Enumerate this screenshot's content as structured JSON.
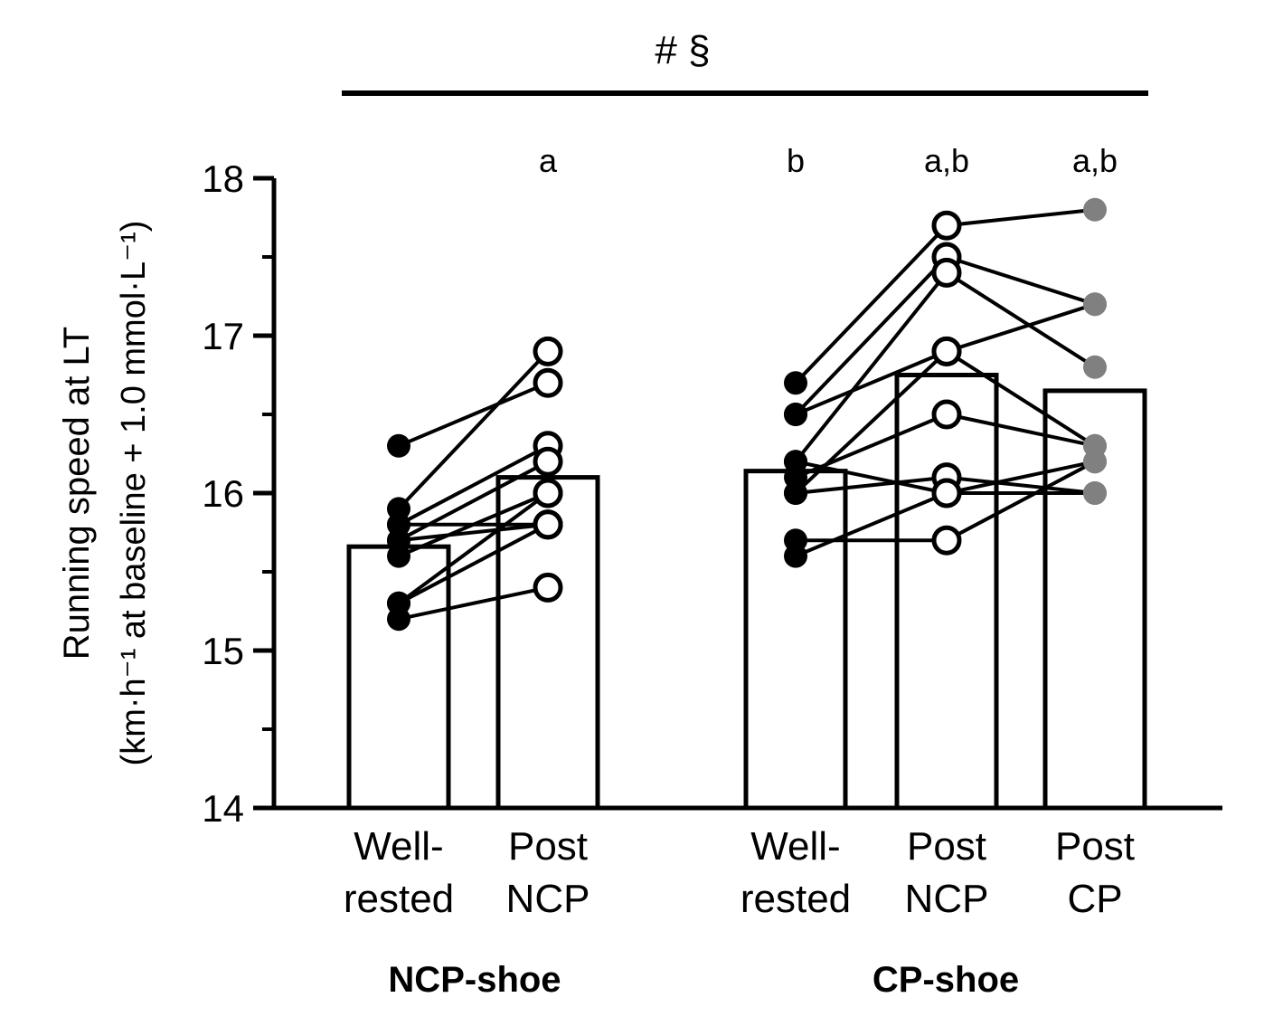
{
  "chart_data": {
    "type": "bar",
    "title": "",
    "ylabel_line1": "Running speed at LT",
    "ylabel_line2": "(km·h⁻¹ at baseline + 1.0 mmol·L⁻¹)",
    "ylim": [
      14,
      18
    ],
    "yticks": [
      "14",
      "15",
      "16",
      "17",
      "18"
    ],
    "significance_top": "# §",
    "categories": [
      {
        "line1": "Well-",
        "line2": "rested",
        "group": 0,
        "annotation": "",
        "bar": 15.66,
        "marker": "filled-black"
      },
      {
        "line1": "Post",
        "line2": "NCP",
        "group": 0,
        "annotation": "a",
        "bar": 16.1,
        "marker": "open"
      },
      {
        "line1": "Well-",
        "line2": "rested",
        "group": 1,
        "annotation": "b",
        "bar": 16.14,
        "marker": "filled-black"
      },
      {
        "line1": "Post",
        "line2": "NCP",
        "group": 1,
        "annotation": "a,b",
        "bar": 16.75,
        "marker": "open"
      },
      {
        "line1": "Post",
        "line2": "CP",
        "group": 1,
        "annotation": "a,b",
        "bar": 16.65,
        "marker": "filled-grey"
      }
    ],
    "groups": [
      "NCP-shoe",
      "CP-shoe"
    ],
    "individuals_ncp_shoe": [
      [
        16.3,
        16.7
      ],
      [
        15.9,
        16.9
      ],
      [
        15.8,
        16.3
      ],
      [
        15.7,
        16.2
      ],
      [
        15.7,
        15.8
      ],
      [
        15.6,
        16.0
      ],
      [
        15.8,
        15.8
      ],
      [
        15.3,
        16.0
      ],
      [
        15.3,
        15.8
      ],
      [
        15.2,
        15.4
      ]
    ],
    "individuals_cp_shoe": [
      [
        16.7,
        17.7,
        17.8
      ],
      [
        16.5,
        17.5,
        17.2
      ],
      [
        16.2,
        17.4,
        16.8
      ],
      [
        16.5,
        16.9,
        17.2
      ],
      [
        16.0,
        16.9,
        16.3
      ],
      [
        16.1,
        16.5,
        16.3
      ],
      [
        16.0,
        16.1,
        16.0
      ],
      [
        16.2,
        16.0,
        16.0
      ],
      [
        15.7,
        15.7,
        16.2
      ],
      [
        15.6,
        16.0,
        16.2
      ]
    ],
    "colors": {
      "axis": "#000000",
      "filled_marker": "#000000",
      "grey_marker": "#808080"
    }
  }
}
